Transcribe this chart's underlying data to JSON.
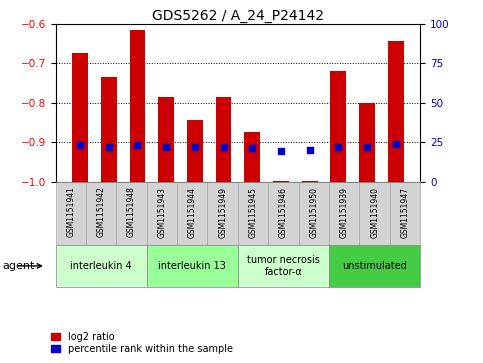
{
  "title": "GDS5262 / A_24_P24142",
  "samples": [
    "GSM1151941",
    "GSM1151942",
    "GSM1151948",
    "GSM1151943",
    "GSM1151944",
    "GSM1151949",
    "GSM1151945",
    "GSM1151946",
    "GSM1151950",
    "GSM1151939",
    "GSM1151940",
    "GSM1151947"
  ],
  "log2_ratio": [
    -0.675,
    -0.735,
    -0.617,
    -0.785,
    -0.845,
    -0.785,
    -0.875,
    -0.998,
    -0.998,
    -0.72,
    -0.8,
    -0.645
  ],
  "percentile_rank": [
    23,
    22,
    23,
    22,
    22,
    22,
    21,
    19,
    20,
    22,
    22,
    24
  ],
  "bar_color": "#cc0000",
  "dot_color": "#0000cc",
  "agent_groups": [
    {
      "label": "interleukin 4",
      "start": 0,
      "end": 3,
      "color": "#ccffcc"
    },
    {
      "label": "interleukin 13",
      "start": 3,
      "end": 6,
      "color": "#99ff99"
    },
    {
      "label": "tumor necrosis\nfactor-α",
      "start": 6,
      "end": 9,
      "color": "#ccffcc"
    },
    {
      "label": "unstimulated",
      "start": 9,
      "end": 12,
      "color": "#44cc44"
    }
  ],
  "ylim_left": [
    -1.0,
    -0.6
  ],
  "ylim_right": [
    0,
    100
  ],
  "yticks_left": [
    -1.0,
    -0.9,
    -0.8,
    -0.7,
    -0.6
  ],
  "yticks_right": [
    0,
    25,
    50,
    75,
    100
  ],
  "legend_log2": "log2 ratio",
  "legend_pct": "percentile rank within the sample",
  "xlabel_agent": "agent",
  "bg_color": "#ffffff",
  "bar_width": 0.55,
  "dot_size": 22,
  "title_fontsize": 10,
  "tick_fontsize": 7.5,
  "sample_fontsize": 5.5,
  "agent_fontsize": 7,
  "legend_fontsize": 7
}
